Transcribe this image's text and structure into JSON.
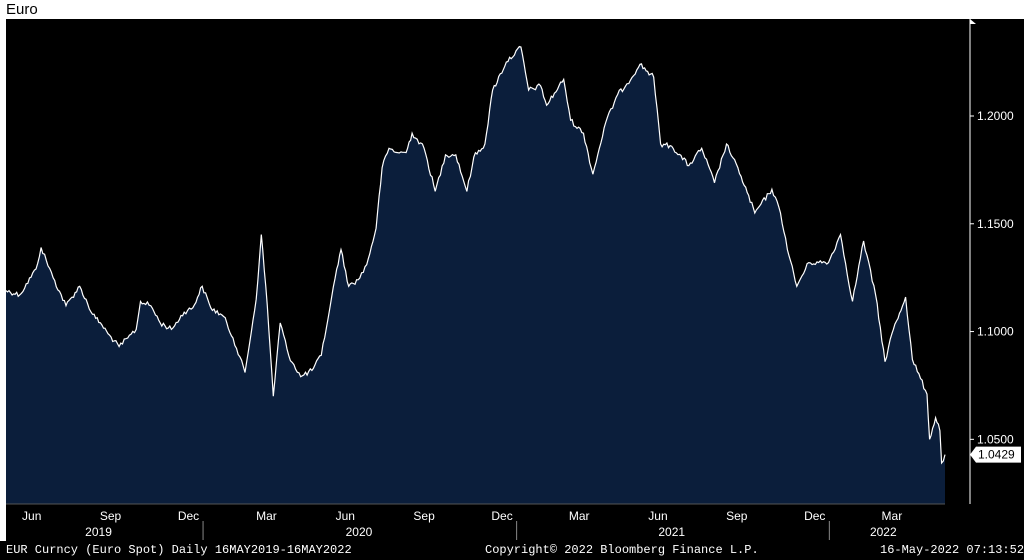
{
  "title": "Euro",
  "colors": {
    "background": "#000000",
    "fill": "#0b1e3b",
    "line": "#ffffff",
    "text": "#ffffff"
  },
  "footer": {
    "left": "EUR Curncy (Euro Spot)  Daily 16MAY2019-16MAY2022",
    "center": "Copyright© 2022 Bloomberg Finance L.P.",
    "right": "16-May-2022 07:13:52"
  },
  "chart_data": {
    "type": "area",
    "title": "Euro",
    "xlabel": "",
    "ylabel": "",
    "ylim": [
      1.02,
      1.245
    ],
    "xlim": [
      "2019-05-16",
      "2022-05-16"
    ],
    "grid": false,
    "y_axis_side": "right",
    "yticks": [
      1.2,
      1.15,
      1.1,
      1.05
    ],
    "ytick_labels": [
      "1.2000",
      "1.1500",
      "1.1000",
      "1.0500"
    ],
    "month_ticks": [
      {
        "label": "Jun",
        "date": "2019-06-15"
      },
      {
        "label": "Sep",
        "date": "2019-09-15"
      },
      {
        "label": "Dec",
        "date": "2019-12-15"
      },
      {
        "label": "Mar",
        "date": "2020-03-15"
      },
      {
        "label": "Jun",
        "date": "2020-06-15"
      },
      {
        "label": "Sep",
        "date": "2020-09-15"
      },
      {
        "label": "Dec",
        "date": "2020-12-15"
      },
      {
        "label": "Mar",
        "date": "2021-03-15"
      },
      {
        "label": "Jun",
        "date": "2021-06-15"
      },
      {
        "label": "Sep",
        "date": "2021-09-15"
      },
      {
        "label": "Dec",
        "date": "2021-12-15"
      },
      {
        "label": "Mar",
        "date": "2022-03-15"
      }
    ],
    "year_labels": [
      {
        "label": "2019",
        "date": "2019-09-01"
      },
      {
        "label": "2020",
        "date": "2020-07-01"
      },
      {
        "label": "2021",
        "date": "2021-07-01"
      },
      {
        "label": "2022",
        "date": "2022-03-05"
      }
    ],
    "year_separators": [
      "2020-01-01",
      "2021-01-01",
      "2022-01-01"
    ],
    "last_value_label": "1.0429",
    "last_value": 1.0429,
    "series": [
      {
        "values": [
          [
            "2019-05-16",
            1.119
          ],
          [
            "2019-06-01",
            1.117
          ],
          [
            "2019-06-20",
            1.129
          ],
          [
            "2019-06-26",
            1.139
          ],
          [
            "2019-07-10",
            1.125
          ],
          [
            "2019-07-25",
            1.112
          ],
          [
            "2019-08-10",
            1.121
          ],
          [
            "2019-08-25",
            1.108
          ],
          [
            "2019-09-05",
            1.103
          ],
          [
            "2019-09-12",
            1.099
          ],
          [
            "2019-09-25",
            1.093
          ],
          [
            "2019-10-05",
            1.097
          ],
          [
            "2019-10-15",
            1.101
          ],
          [
            "2019-10-20",
            1.114
          ],
          [
            "2019-11-01",
            1.112
          ],
          [
            "2019-11-12",
            1.104
          ],
          [
            "2019-11-25",
            1.101
          ],
          [
            "2019-12-10",
            1.109
          ],
          [
            "2019-12-20",
            1.111
          ],
          [
            "2019-12-31",
            1.121
          ],
          [
            "2020-01-10",
            1.111
          ],
          [
            "2020-01-25",
            1.107
          ],
          [
            "2020-02-05",
            1.097
          ],
          [
            "2020-02-19",
            1.081
          ],
          [
            "2020-03-03",
            1.115
          ],
          [
            "2020-03-09",
            1.145
          ],
          [
            "2020-03-16",
            1.112
          ],
          [
            "2020-03-23",
            1.07
          ],
          [
            "2020-03-31",
            1.104
          ],
          [
            "2020-04-10",
            1.089
          ],
          [
            "2020-04-24",
            1.079
          ],
          [
            "2020-05-07",
            1.082
          ],
          [
            "2020-05-18",
            1.089
          ],
          [
            "2020-05-28",
            1.111
          ],
          [
            "2020-06-05",
            1.129
          ],
          [
            "2020-06-10",
            1.138
          ],
          [
            "2020-06-19",
            1.121
          ],
          [
            "2020-06-30",
            1.124
          ],
          [
            "2020-07-10",
            1.131
          ],
          [
            "2020-07-21",
            1.148
          ],
          [
            "2020-07-28",
            1.176
          ],
          [
            "2020-08-05",
            1.185
          ],
          [
            "2020-08-15",
            1.183
          ],
          [
            "2020-08-25",
            1.183
          ],
          [
            "2020-09-01",
            1.192
          ],
          [
            "2020-09-15",
            1.185
          ],
          [
            "2020-09-28",
            1.165
          ],
          [
            "2020-10-10",
            1.182
          ],
          [
            "2020-10-22",
            1.182
          ],
          [
            "2020-11-04",
            1.165
          ],
          [
            "2020-11-12",
            1.181
          ],
          [
            "2020-11-25",
            1.187
          ],
          [
            "2020-12-04",
            1.212
          ],
          [
            "2020-12-20",
            1.225
          ],
          [
            "2021-01-06",
            1.232
          ],
          [
            "2021-01-15",
            1.212
          ],
          [
            "2021-01-29",
            1.214
          ],
          [
            "2021-02-05",
            1.205
          ],
          [
            "2021-02-25",
            1.217
          ],
          [
            "2021-03-05",
            1.198
          ],
          [
            "2021-03-20",
            1.192
          ],
          [
            "2021-03-31",
            1.173
          ],
          [
            "2021-04-15",
            1.197
          ],
          [
            "2021-04-29",
            1.21
          ],
          [
            "2021-05-10",
            1.215
          ],
          [
            "2021-05-25",
            1.224
          ],
          [
            "2021-06-10",
            1.218
          ],
          [
            "2021-06-18",
            1.187
          ],
          [
            "2021-07-01",
            1.186
          ],
          [
            "2021-07-21",
            1.177
          ],
          [
            "2021-08-05",
            1.185
          ],
          [
            "2021-08-20",
            1.169
          ],
          [
            "2021-09-03",
            1.187
          ],
          [
            "2021-09-20",
            1.172
          ],
          [
            "2021-10-06",
            1.155
          ],
          [
            "2021-10-26",
            1.166
          ],
          [
            "2021-11-05",
            1.155
          ],
          [
            "2021-11-15",
            1.135
          ],
          [
            "2021-11-24",
            1.121
          ],
          [
            "2021-12-08",
            1.132
          ],
          [
            "2021-12-31",
            1.132
          ],
          [
            "2022-01-14",
            1.145
          ],
          [
            "2022-01-28",
            1.114
          ],
          [
            "2022-02-10",
            1.142
          ],
          [
            "2022-02-24",
            1.117
          ],
          [
            "2022-03-07",
            1.086
          ],
          [
            "2022-03-15",
            1.099
          ],
          [
            "2022-03-31",
            1.116
          ],
          [
            "2022-04-08",
            1.087
          ],
          [
            "2022-04-25",
            1.071
          ],
          [
            "2022-04-28",
            1.05
          ],
          [
            "2022-05-05",
            1.06
          ],
          [
            "2022-05-10",
            1.054
          ],
          [
            "2022-05-12",
            1.039
          ],
          [
            "2022-05-16",
            1.0429
          ]
        ]
      }
    ]
  }
}
